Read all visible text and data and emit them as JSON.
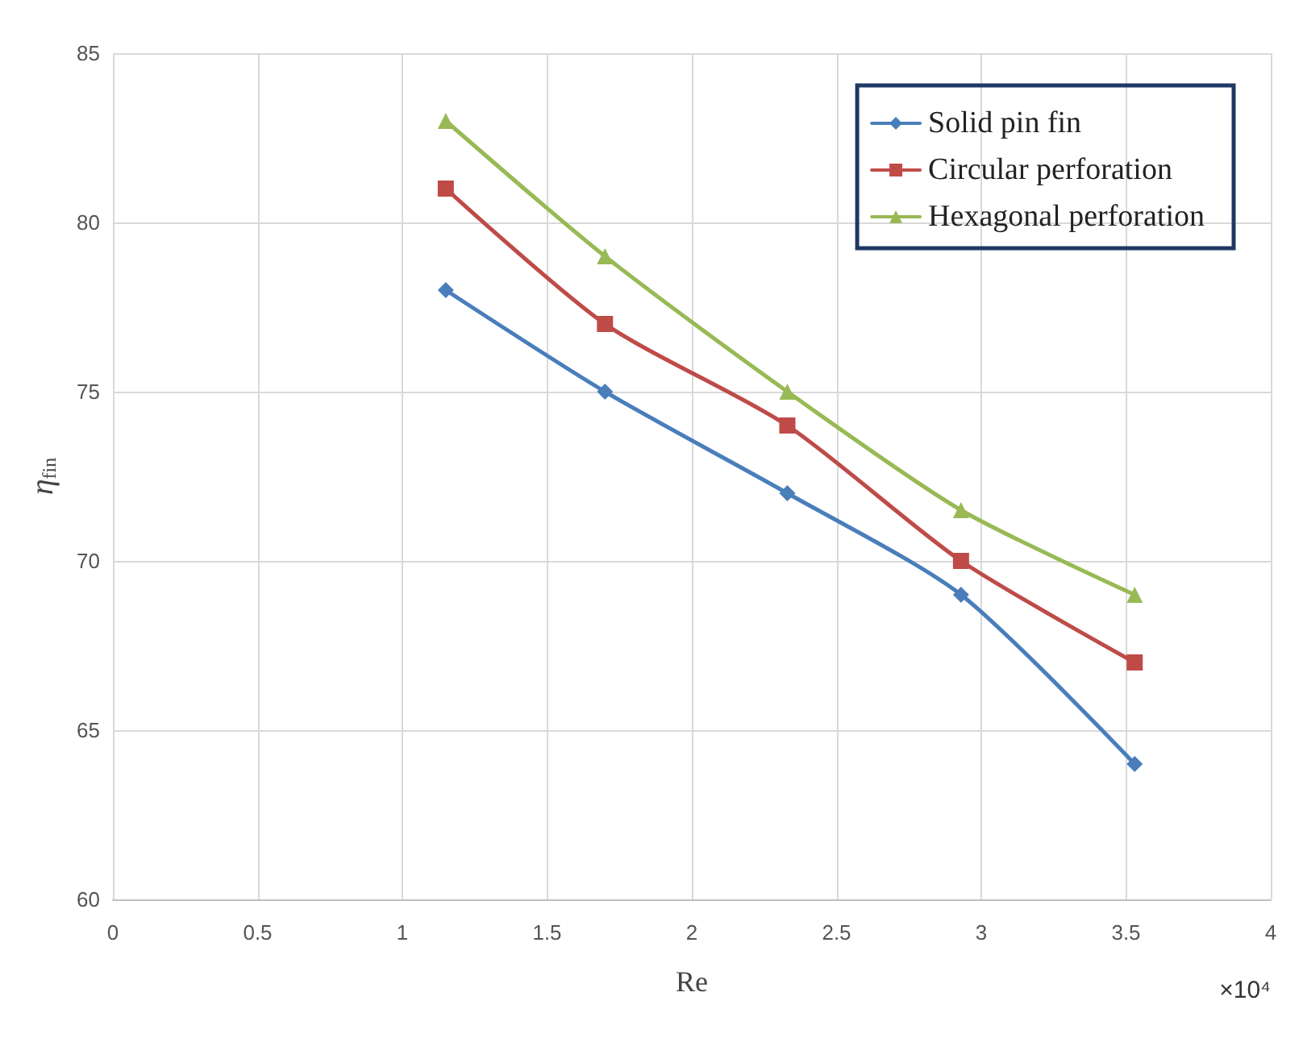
{
  "chart_data": {
    "type": "line",
    "xlabel": "Re",
    "ylabel": "η$_{fin}$",
    "annotations": [
      "×10⁴"
    ],
    "x": [
      1.15,
      1.7,
      2.33,
      2.93,
      3.53
    ],
    "series": [
      {
        "name": "Solid pin fin",
        "color": "#4a7ebb",
        "marker": "diamond",
        "values": [
          78,
          75,
          72,
          69,
          64
        ]
      },
      {
        "name": "Circular perforation",
        "color": "#be4b48",
        "marker": "square",
        "values": [
          81,
          77,
          74,
          70,
          67
        ]
      },
      {
        "name": "Hexagonal perforation",
        "color": "#98b954",
        "marker": "triangle",
        "values": [
          83,
          79,
          75,
          71.5,
          69
        ]
      }
    ],
    "xlim": [
      0,
      4
    ],
    "xticks": [
      0,
      0.5,
      1,
      1.5,
      2,
      2.5,
      3,
      3.5,
      4
    ],
    "ylim": [
      60,
      85
    ],
    "yticks": [
      60,
      65,
      70,
      75,
      80,
      85
    ],
    "grid": true,
    "legend": "top right",
    "line_style": "solid"
  }
}
